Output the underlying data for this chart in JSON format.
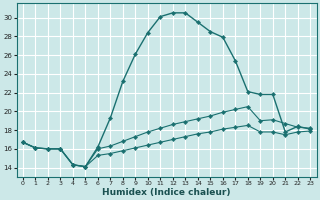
{
  "xlabel": "Humidex (Indice chaleur)",
  "x_ticks": [
    0,
    1,
    2,
    3,
    4,
    5,
    6,
    7,
    8,
    9,
    10,
    11,
    12,
    13,
    14,
    15,
    16,
    17,
    18,
    19,
    20,
    21,
    22,
    23
  ],
  "xlim": [
    -0.5,
    23.5
  ],
  "ylim": [
    13.0,
    31.5
  ],
  "y_ticks": [
    14,
    16,
    18,
    20,
    22,
    24,
    26,
    28,
    30
  ],
  "background_color": "#cce8e8",
  "grid_color": "#ffffff",
  "line_color": "#1a7070",
  "line1_x": [
    0,
    1,
    2,
    3,
    4,
    5,
    6,
    7,
    8,
    9,
    10,
    11,
    12,
    13,
    14,
    15,
    16,
    17,
    18,
    19,
    20,
    21,
    22,
    23
  ],
  "line1_y": [
    16.7,
    16.1,
    16.0,
    16.0,
    14.3,
    14.1,
    16.2,
    19.3,
    23.2,
    26.1,
    28.4,
    30.1,
    30.5,
    30.5,
    29.5,
    28.5,
    27.9,
    25.4,
    22.1,
    21.8,
    21.8,
    17.8,
    18.4,
    18.1
  ],
  "line2_x": [
    0,
    1,
    2,
    3,
    4,
    5,
    6,
    7,
    8,
    9,
    10,
    11,
    12,
    13,
    14,
    15,
    16,
    17,
    18,
    19,
    20,
    21,
    22,
    23
  ],
  "line2_y": [
    16.7,
    16.1,
    16.0,
    16.0,
    14.3,
    14.1,
    16.0,
    16.3,
    16.8,
    17.3,
    17.8,
    18.2,
    18.6,
    18.9,
    19.2,
    19.5,
    19.9,
    20.2,
    20.5,
    19.0,
    19.1,
    18.7,
    18.3,
    18.2
  ],
  "line3_x": [
    0,
    1,
    2,
    3,
    4,
    5,
    6,
    7,
    8,
    9,
    10,
    11,
    12,
    13,
    14,
    15,
    16,
    17,
    18,
    19,
    20,
    21,
    22,
    23
  ],
  "line3_y": [
    16.7,
    16.1,
    16.0,
    16.0,
    14.3,
    14.1,
    15.3,
    15.5,
    15.8,
    16.1,
    16.4,
    16.7,
    17.0,
    17.3,
    17.6,
    17.8,
    18.1,
    18.3,
    18.5,
    17.8,
    17.8,
    17.5,
    17.8,
    17.9
  ]
}
